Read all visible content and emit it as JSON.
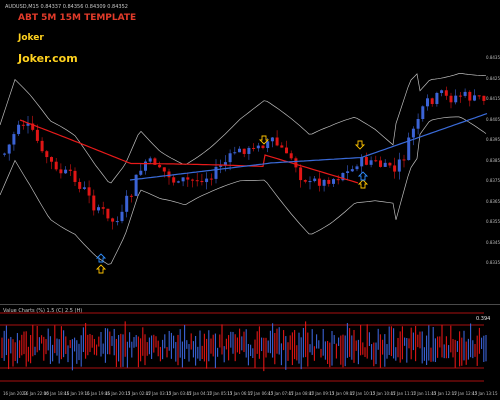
{
  "symbol_info": "AUDUSD,M15 0.84337 0.84356 0.84309 0.84352",
  "template_title": "ABT 5M 15M TEMPLATE",
  "author": "Joker",
  "site": "Joker.com",
  "oscillator": {
    "title": "Value Charts (%) 1.5 (C) 2.5 (H)",
    "value": "0.394"
  },
  "price_axis": [
    "0.8435",
    "0.8425",
    "0.8415",
    "0.8405",
    "0.8395",
    "0.8385",
    "0.8375",
    "0.8365",
    "0.8355",
    "0.8345",
    "0.8335"
  ],
  "time_axis": [
    "16 Jan 2023",
    "16 Jan 22:00",
    "16 Jan 18:45",
    "16 Jan 19:15",
    "16 Jan 19:45",
    "16 Jan 20:15",
    "17 Jan 02:45",
    "17 Jan 03:15",
    "17 Jan 03:45",
    "17 Jan 04:15",
    "17 Jan 05:15",
    "17 Jan 06:15",
    "17 Jan 06:45",
    "17 Jan 07:45",
    "17 Jan 08:45",
    "17 Jan 09:15",
    "17 Jan 09:45",
    "17 Jan 10:15",
    "17 Jan 10:45",
    "17 Jan 11:15",
    "17 Jan 11:45",
    "17 Jan 12:15",
    "17 Jan 12:45",
    "17 Jan 13:15"
  ],
  "colors": {
    "background": "#000000",
    "bull_candle": "#3b63d6",
    "bear_candle": "#e01515",
    "band": "#bdbdbd",
    "ma_red": "#e81a1a",
    "ma_blue": "#3a6bd9",
    "arrow_up": "#ffc400",
    "arrow_down": "#ffc400",
    "arrow_blue": "#2f8fff"
  }
}
